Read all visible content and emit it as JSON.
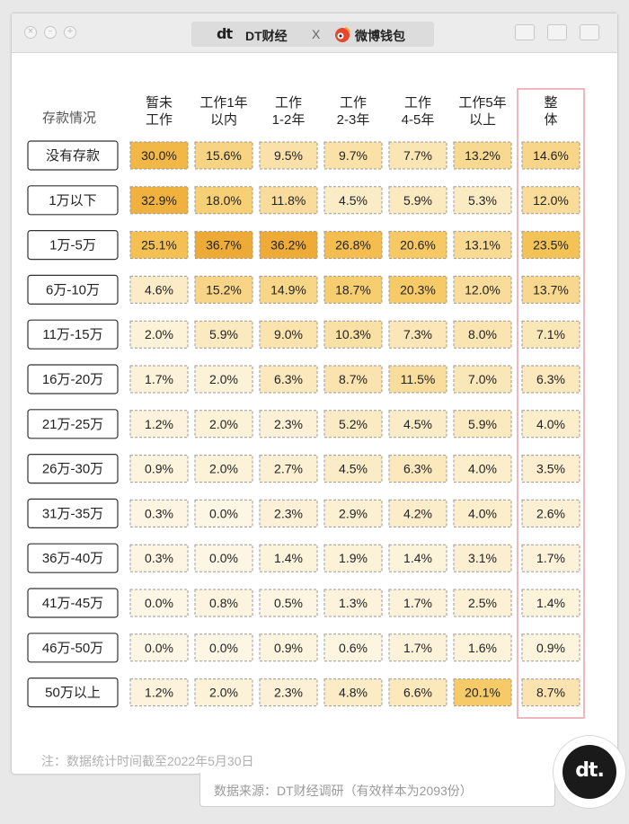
{
  "titlebar": {
    "brand_left": "DT财经",
    "separator": "X",
    "brand_right": "微博钱包",
    "window_buttons": [
      "close-icon",
      "minimize-icon",
      "maximize-icon"
    ],
    "right_icons": [
      "window-icon",
      "home-icon",
      "copy-icon"
    ]
  },
  "chart_data": {
    "type": "table",
    "row_header": "存款情况",
    "columns": [
      [
        "暂未",
        "工作"
      ],
      [
        "工作1年",
        "以内"
      ],
      [
        "工作",
        "1-2年"
      ],
      [
        "工作",
        "2-3年"
      ],
      [
        "工作",
        "4-5年"
      ],
      [
        "工作5年",
        "以上"
      ],
      [
        "整",
        "体"
      ]
    ],
    "rows": [
      {
        "label": "没有存款",
        "values": [
          30.0,
          15.6,
          9.5,
          9.7,
          7.7,
          13.2,
          14.6
        ]
      },
      {
        "label": "1万以下",
        "values": [
          32.9,
          18.0,
          11.8,
          4.5,
          5.9,
          5.3,
          12.0
        ]
      },
      {
        "label": "1万-5万",
        "values": [
          25.1,
          36.7,
          36.2,
          26.8,
          20.6,
          13.1,
          23.5
        ]
      },
      {
        "label": "6万-10万",
        "values": [
          4.6,
          15.2,
          14.9,
          18.7,
          20.3,
          12.0,
          13.7
        ]
      },
      {
        "label": "11万-15万",
        "values": [
          2.0,
          5.9,
          9.0,
          10.3,
          7.3,
          8.0,
          7.1
        ]
      },
      {
        "label": "16万-20万",
        "values": [
          1.7,
          2.0,
          6.3,
          8.7,
          11.5,
          7.0,
          6.3
        ]
      },
      {
        "label": "21万-25万",
        "values": [
          1.2,
          2.0,
          2.3,
          5.2,
          4.5,
          5.9,
          4.0
        ]
      },
      {
        "label": "26万-30万",
        "values": [
          0.9,
          2.0,
          2.7,
          4.5,
          6.3,
          4.0,
          3.5
        ]
      },
      {
        "label": "31万-35万",
        "values": [
          0.3,
          0.0,
          2.3,
          2.9,
          4.2,
          4.0,
          2.6
        ]
      },
      {
        "label": "36万-40万",
        "values": [
          0.3,
          0.0,
          1.4,
          1.9,
          1.4,
          3.1,
          1.7
        ]
      },
      {
        "label": "41万-45万",
        "values": [
          0.0,
          0.8,
          0.5,
          1.3,
          1.7,
          2.5,
          1.4
        ]
      },
      {
        "label": "46万-50万",
        "values": [
          0.0,
          0.0,
          0.9,
          0.6,
          1.7,
          1.6,
          0.9
        ]
      },
      {
        "label": "50万以上",
        "values": [
          1.2,
          2.0,
          2.3,
          4.8,
          6.6,
          20.1,
          8.7
        ]
      }
    ],
    "value_suffix": "%",
    "highlight_column": 6,
    "highlight_color": "#e8a0a8",
    "color_scale": [
      "#fdf6e4",
      "#f5c65a",
      "#eea935"
    ]
  },
  "footer": {
    "note": "注：数据统计时间截至2022年5月30日",
    "source": "数据来源：DT财经调研（有效样本为2093份）",
    "badge": "dt."
  }
}
